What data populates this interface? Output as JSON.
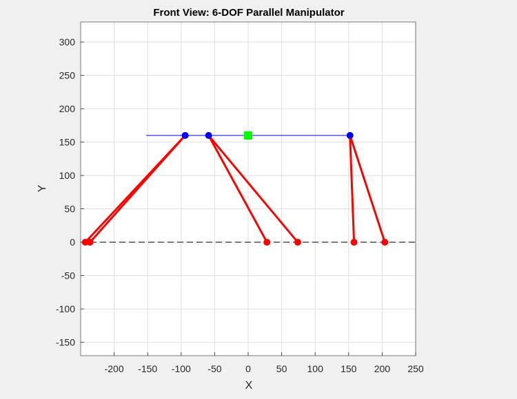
{
  "chart_data": {
    "type": "scatter",
    "title": "Front View: 6-DOF Parallel Manipulator",
    "xlabel": "X",
    "ylabel": "Y",
    "xlim": [
      -250,
      250
    ],
    "ylim": [
      -170,
      330
    ],
    "xticks": [
      -200,
      -150,
      -100,
      -50,
      0,
      50,
      100,
      150,
      200,
      250
    ],
    "yticks": [
      -150,
      -100,
      -50,
      0,
      50,
      100,
      150,
      200,
      250,
      300
    ],
    "grid": true,
    "platform_line": {
      "x": [
        -152,
        152
      ],
      "y": [
        160,
        160
      ],
      "color": "#0000ff"
    },
    "base_line": {
      "y": 0,
      "style": "dashed",
      "color": "#404040"
    },
    "base_joints": {
      "color": "#ff0000",
      "points": [
        {
          "x": -243,
          "y": 0
        },
        {
          "x": -236,
          "y": 0
        },
        {
          "x": 28,
          "y": 0
        },
        {
          "x": 74,
          "y": 0
        },
        {
          "x": 158,
          "y": 0
        },
        {
          "x": 204,
          "y": 0
        }
      ]
    },
    "platform_joints": {
      "color": "#0000ff",
      "points": [
        {
          "x": -94,
          "y": 160
        },
        {
          "x": -59,
          "y": 160
        },
        {
          "x": 152,
          "y": 160
        }
      ]
    },
    "center": {
      "x": 0,
      "y": 160,
      "color": "#00ff00",
      "marker": "square"
    },
    "legs": {
      "color": "#ff0000",
      "segments": [
        {
          "from": [
            -243,
            0
          ],
          "to": [
            -94,
            160
          ]
        },
        {
          "from": [
            -236,
            0
          ],
          "to": [
            -94,
            160
          ]
        },
        {
          "from": [
            28,
            0
          ],
          "to": [
            -59,
            160
          ]
        },
        {
          "from": [
            74,
            0
          ],
          "to": [
            -59,
            160
          ]
        },
        {
          "from": [
            158,
            0
          ],
          "to": [
            152,
            160
          ]
        },
        {
          "from": [
            204,
            0
          ],
          "to": [
            152,
            160
          ]
        }
      ]
    }
  }
}
